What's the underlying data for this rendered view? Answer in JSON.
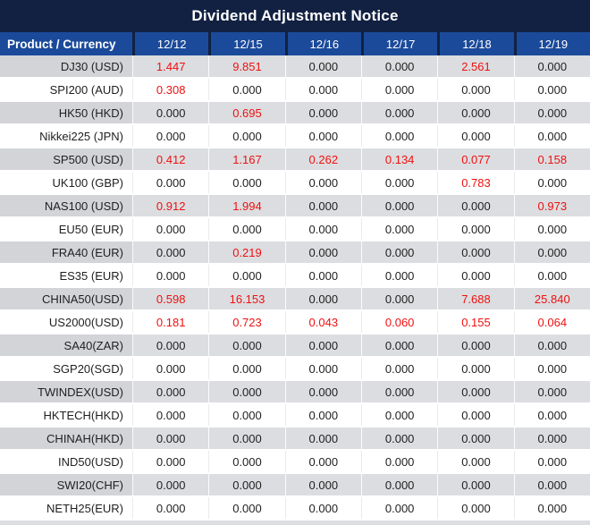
{
  "title": "Dividend Adjustment Notice",
  "table": {
    "columns": [
      "Product / Currency",
      "12/12",
      "12/15",
      "12/16",
      "12/17",
      "12/18",
      "12/19"
    ],
    "zero_value": "0.000",
    "rows": [
      {
        "product": "DJ30 (USD)",
        "values": [
          "1.447",
          "9.851",
          "0.000",
          "0.000",
          "2.561",
          "0.000"
        ]
      },
      {
        "product": "SPI200 (AUD)",
        "values": [
          "0.308",
          "0.000",
          "0.000",
          "0.000",
          "0.000",
          "0.000"
        ]
      },
      {
        "product": "HK50 (HKD)",
        "values": [
          "0.000",
          "0.695",
          "0.000",
          "0.000",
          "0.000",
          "0.000"
        ]
      },
      {
        "product": "Nikkei225 (JPN)",
        "values": [
          "0.000",
          "0.000",
          "0.000",
          "0.000",
          "0.000",
          "0.000"
        ]
      },
      {
        "product": "SP500 (USD)",
        "values": [
          "0.412",
          "1.167",
          "0.262",
          "0.134",
          "0.077",
          "0.158"
        ]
      },
      {
        "product": "UK100 (GBP)",
        "values": [
          "0.000",
          "0.000",
          "0.000",
          "0.000",
          "0.783",
          "0.000"
        ]
      },
      {
        "product": "NAS100 (USD)",
        "values": [
          "0.912",
          "1.994",
          "0.000",
          "0.000",
          "0.000",
          "0.973"
        ]
      },
      {
        "product": "EU50 (EUR)",
        "values": [
          "0.000",
          "0.000",
          "0.000",
          "0.000",
          "0.000",
          "0.000"
        ]
      },
      {
        "product": "FRA40 (EUR)",
        "values": [
          "0.000",
          "0.219",
          "0.000",
          "0.000",
          "0.000",
          "0.000"
        ]
      },
      {
        "product": "ES35 (EUR)",
        "values": [
          "0.000",
          "0.000",
          "0.000",
          "0.000",
          "0.000",
          "0.000"
        ]
      },
      {
        "product": "CHINA50(USD)",
        "values": [
          "0.598",
          "16.153",
          "0.000",
          "0.000",
          "7.688",
          "25.840"
        ]
      },
      {
        "product": "US2000(USD)",
        "values": [
          "0.181",
          "0.723",
          "0.043",
          "0.060",
          "0.155",
          "0.064"
        ]
      },
      {
        "product": "SA40(ZAR)",
        "values": [
          "0.000",
          "0.000",
          "0.000",
          "0.000",
          "0.000",
          "0.000"
        ]
      },
      {
        "product": "SGP20(SGD)",
        "values": [
          "0.000",
          "0.000",
          "0.000",
          "0.000",
          "0.000",
          "0.000"
        ]
      },
      {
        "product": "TWINDEX(USD)",
        "values": [
          "0.000",
          "0.000",
          "0.000",
          "0.000",
          "0.000",
          "0.000"
        ]
      },
      {
        "product": "HKTECH(HKD)",
        "values": [
          "0.000",
          "0.000",
          "0.000",
          "0.000",
          "0.000",
          "0.000"
        ]
      },
      {
        "product": "CHINAH(HKD)",
        "values": [
          "0.000",
          "0.000",
          "0.000",
          "0.000",
          "0.000",
          "0.000"
        ]
      },
      {
        "product": "IND50(USD)",
        "values": [
          "0.000",
          "0.000",
          "0.000",
          "0.000",
          "0.000",
          "0.000"
        ]
      },
      {
        "product": "SWI20(CHF)",
        "values": [
          "0.000",
          "0.000",
          "0.000",
          "0.000",
          "0.000",
          "0.000"
        ]
      },
      {
        "product": "NETH25(EUR)",
        "values": [
          "0.000",
          "0.000",
          "0.000",
          "0.000",
          "0.000",
          "0.000"
        ]
      }
    ]
  },
  "colors": {
    "title_bg": "#122142",
    "header_bg": "#1b4a9a",
    "header_divider": "#122142",
    "row_gray_value_bg": "#dcdde0",
    "row_gray_product_bg": "#d2d4d8",
    "row_white_bg": "#ffffff",
    "text_dark": "#1f1f1f",
    "text_white": "#ffffff",
    "nonzero_red": "#ee1111"
  }
}
